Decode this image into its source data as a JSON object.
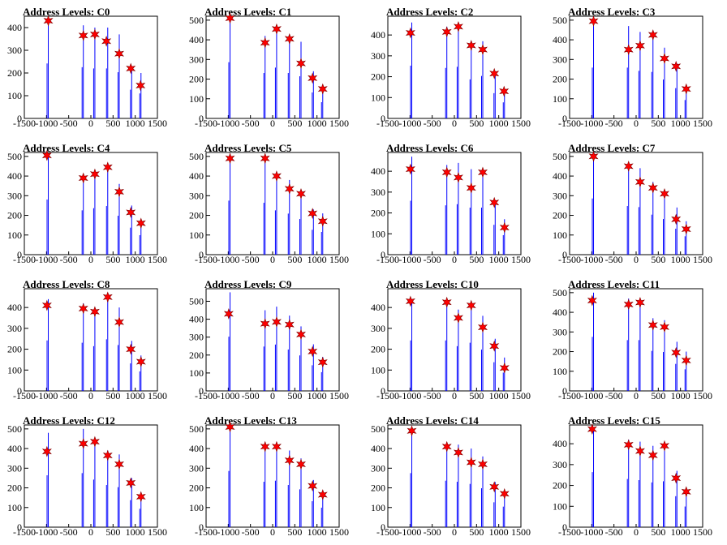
{
  "page": {
    "columns": 4,
    "rows": 4
  },
  "colors": {
    "line": "#0000ff",
    "marker": "#ff0000",
    "marker_edge": "#800000"
  },
  "chart_data": [
    {
      "type": "bar",
      "title": "Address Levels: C0",
      "xlim": [
        -1500,
        1500
      ],
      "ylim": [
        0,
        450
      ],
      "yticks": [
        0,
        100,
        200,
        300,
        400
      ],
      "xticks": [
        -1500,
        -1000,
        -500,
        0,
        500,
        1000,
        1500
      ],
      "bars_x": [
        -960,
        -170,
        90,
        380,
        640,
        920,
        1130
      ],
      "bars_y": [
        440,
        410,
        400,
        400,
        370,
        230,
        200
      ],
      "markers_x": [
        -960,
        -170,
        90,
        350,
        640,
        900,
        1120
      ],
      "markers_y": [
        430,
        365,
        370,
        340,
        285,
        220,
        145
      ]
    },
    {
      "type": "bar",
      "title": "Address Levels: C1",
      "xlim": [
        -1500,
        1500
      ],
      "ylim": [
        0,
        520
      ],
      "yticks": [
        0,
        100,
        200,
        300,
        400,
        500
      ],
      "xticks": [
        -1500,
        -1000,
        -500,
        0,
        500,
        1000,
        1500
      ],
      "bars_x": [
        -960,
        -170,
        90,
        380,
        640,
        920,
        1130
      ],
      "bars_y": [
        520,
        420,
        470,
        420,
        390,
        240,
        150
      ],
      "markers_x": [
        -960,
        -170,
        90,
        380,
        640,
        900,
        1130
      ],
      "markers_y": [
        510,
        385,
        455,
        405,
        280,
        205,
        150
      ]
    },
    {
      "type": "bar",
      "title": "Address Levels: C2",
      "xlim": [
        -1500,
        1500
      ],
      "ylim": [
        0,
        490
      ],
      "yticks": [
        0,
        100,
        200,
        300,
        400
      ],
      "xticks": [
        -1500,
        -1000,
        -500,
        0,
        500,
        1000,
        1500
      ],
      "bars_x": [
        -960,
        -170,
        90,
        380,
        640,
        920,
        1130
      ],
      "bars_y": [
        460,
        440,
        450,
        340,
        370,
        220,
        140
      ],
      "markers_x": [
        -990,
        -170,
        90,
        380,
        640,
        900,
        1120
      ],
      "markers_y": [
        410,
        415,
        440,
        350,
        330,
        215,
        130
      ]
    },
    {
      "type": "bar",
      "title": "Address Levels: C3",
      "xlim": [
        -1500,
        1500
      ],
      "ylim": [
        0,
        520
      ],
      "yticks": [
        0,
        100,
        200,
        300,
        400,
        500
      ],
      "xticks": [
        -1500,
        -1000,
        -500,
        0,
        500,
        1000,
        1500
      ],
      "bars_x": [
        -960,
        -170,
        90,
        380,
        640,
        920,
        1130
      ],
      "bars_y": [
        470,
        470,
        440,
        430,
        360,
        280,
        170
      ],
      "markers_x": [
        -960,
        -170,
        90,
        380,
        640,
        900,
        1130
      ],
      "markers_y": [
        495,
        350,
        370,
        425,
        305,
        265,
        150
      ]
    },
    {
      "type": "bar",
      "title": "Address Levels: C4",
      "xlim": [
        -1500,
        1500
      ],
      "ylim": [
        0,
        520
      ],
      "yticks": [
        0,
        100,
        200,
        300,
        400,
        500
      ],
      "xticks": [
        -1500,
        -1000,
        -500,
        0,
        500,
        1000,
        1500
      ],
      "bars_x": [
        -960,
        -170,
        90,
        380,
        640,
        920,
        1130
      ],
      "bars_y": [
        510,
        410,
        430,
        450,
        360,
        250,
        180
      ],
      "markers_x": [
        -990,
        -170,
        90,
        380,
        640,
        900,
        1130
      ],
      "markers_y": [
        505,
        390,
        410,
        445,
        320,
        215,
        160
      ]
    },
    {
      "type": "bar",
      "title": "Address Levels: C5",
      "xlim": [
        -1500,
        1500
      ],
      "ylim": [
        0,
        520
      ],
      "yticks": [
        0,
        100,
        200,
        300,
        400,
        500
      ],
      "xticks": [
        -1500,
        -1000,
        -500,
        0,
        500,
        1000,
        1500
      ],
      "bars_x": [
        -960,
        -170,
        90,
        380,
        640,
        920,
        1130
      ],
      "bars_y": [
        500,
        480,
        410,
        380,
        330,
        230,
        210
      ],
      "markers_x": [
        -960,
        -170,
        90,
        380,
        640,
        900,
        1130
      ],
      "markers_y": [
        490,
        490,
        400,
        335,
        310,
        210,
        170
      ]
    },
    {
      "type": "bar",
      "title": "Address Levels: C6",
      "xlim": [
        -1500,
        1500
      ],
      "ylim": [
        0,
        490
      ],
      "yticks": [
        0,
        100,
        200,
        300,
        400
      ],
      "xticks": [
        -1500,
        -1000,
        -500,
        0,
        500,
        1000,
        1500
      ],
      "bars_x": [
        -960,
        -170,
        90,
        380,
        640,
        920,
        1130
      ],
      "bars_y": [
        470,
        430,
        440,
        410,
        410,
        260,
        170
      ],
      "markers_x": [
        -990,
        -170,
        90,
        380,
        640,
        900,
        1130
      ],
      "markers_y": [
        410,
        395,
        370,
        320,
        395,
        250,
        130
      ]
    },
    {
      "type": "bar",
      "title": "Address Levels: C7",
      "xlim": [
        -1500,
        1500
      ],
      "ylim": [
        0,
        520
      ],
      "yticks": [
        0,
        100,
        200,
        300,
        400,
        500
      ],
      "xticks": [
        -1500,
        -1000,
        -500,
        0,
        500,
        1000,
        1500
      ],
      "bars_x": [
        -960,
        -170,
        90,
        380,
        640,
        920,
        1130
      ],
      "bars_y": [
        520,
        450,
        440,
        370,
        330,
        240,
        170
      ],
      "markers_x": [
        -960,
        -170,
        90,
        380,
        640,
        900,
        1130
      ],
      "markers_y": [
        500,
        450,
        370,
        340,
        310,
        180,
        130
      ]
    },
    {
      "type": "bar",
      "title": "Address Levels: C8",
      "xlim": [
        -1500,
        1500
      ],
      "ylim": [
        0,
        490
      ],
      "yticks": [
        0,
        100,
        200,
        300,
        400
      ],
      "xticks": [
        -1500,
        -1000,
        -500,
        0,
        500,
        1000,
        1500
      ],
      "bars_x": [
        -960,
        -170,
        90,
        380,
        640,
        920,
        1130
      ],
      "bars_y": [
        440,
        420,
        390,
        450,
        400,
        240,
        170
      ],
      "markers_x": [
        -990,
        -170,
        90,
        380,
        640,
        900,
        1130
      ],
      "markers_y": [
        410,
        395,
        380,
        450,
        330,
        200,
        140
      ]
    },
    {
      "type": "bar",
      "title": "Address Levels: C9",
      "xlim": [
        -1500,
        1500
      ],
      "ylim": [
        0,
        570
      ],
      "yticks": [
        0,
        100,
        200,
        300,
        400,
        500
      ],
      "xticks": [
        -1500,
        -1000,
        -500,
        0,
        500,
        1000,
        1500
      ],
      "bars_x": [
        -960,
        -170,
        90,
        380,
        640,
        920,
        1130
      ],
      "bars_y": [
        550,
        450,
        470,
        420,
        360,
        260,
        190
      ],
      "markers_x": [
        -990,
        -170,
        90,
        380,
        640,
        900,
        1130
      ],
      "markers_y": [
        430,
        375,
        385,
        370,
        315,
        220,
        160
      ]
    },
    {
      "type": "bar",
      "title": "Address Levels: C10",
      "xlim": [
        -1500,
        1500
      ],
      "ylim": [
        0,
        490
      ],
      "yticks": [
        0,
        100,
        200,
        300,
        400
      ],
      "xticks": [
        -1500,
        -1000,
        -500,
        0,
        500,
        1000,
        1500
      ],
      "bars_x": [
        -960,
        -170,
        90,
        380,
        640,
        920,
        1130
      ],
      "bars_y": [
        440,
        440,
        390,
        420,
        360,
        250,
        160
      ],
      "markers_x": [
        -990,
        -170,
        90,
        380,
        640,
        900,
        1130
      ],
      "markers_y": [
        430,
        425,
        350,
        410,
        305,
        215,
        110
      ]
    },
    {
      "type": "bar",
      "title": "Address Levels: C11",
      "xlim": [
        -1500,
        1500
      ],
      "ylim": [
        0,
        520
      ],
      "yticks": [
        0,
        100,
        200,
        300,
        400,
        500
      ],
      "xticks": [
        -1500,
        -1000,
        -500,
        0,
        500,
        1000,
        1500
      ],
      "bars_x": [
        -960,
        -170,
        90,
        380,
        640,
        920,
        1130
      ],
      "bars_y": [
        500,
        470,
        470,
        370,
        360,
        250,
        200
      ],
      "markers_x": [
        -990,
        -170,
        90,
        380,
        640,
        900,
        1130
      ],
      "markers_y": [
        460,
        440,
        450,
        335,
        325,
        195,
        155
      ]
    },
    {
      "type": "bar",
      "title": "Address Levels: C12",
      "xlim": [
        -1500,
        1500
      ],
      "ylim": [
        0,
        520
      ],
      "yticks": [
        0,
        100,
        200,
        300,
        400,
        500
      ],
      "xticks": [
        -1500,
        -1000,
        -500,
        0,
        500,
        1000,
        1500
      ],
      "bars_x": [
        -960,
        -170,
        90,
        380,
        640,
        920,
        1130
      ],
      "bars_y": [
        480,
        500,
        440,
        390,
        370,
        250,
        170
      ],
      "markers_x": [
        -990,
        -170,
        90,
        380,
        640,
        900,
        1130
      ],
      "markers_y": [
        385,
        425,
        435,
        365,
        320,
        225,
        155
      ]
    },
    {
      "type": "bar",
      "title": "Address Levels: C13",
      "xlim": [
        -1500,
        1500
      ],
      "ylim": [
        0,
        520
      ],
      "yticks": [
        0,
        100,
        200,
        300,
        400,
        500
      ],
      "xticks": [
        -1500,
        -1000,
        -500,
        0,
        500,
        1000,
        1500
      ],
      "bars_x": [
        -960,
        -170,
        90,
        380,
        640,
        920,
        1130
      ],
      "bars_y": [
        520,
        420,
        430,
        390,
        350,
        240,
        180
      ],
      "markers_x": [
        -960,
        -170,
        90,
        380,
        640,
        900,
        1130
      ],
      "markers_y": [
        510,
        410,
        410,
        340,
        320,
        210,
        165
      ]
    },
    {
      "type": "bar",
      "title": "Address Levels: C14",
      "xlim": [
        -1500,
        1500
      ],
      "ylim": [
        0,
        520
      ],
      "yticks": [
        0,
        100,
        200,
        300,
        400,
        500
      ],
      "xticks": [
        -1500,
        -1000,
        -500,
        0,
        500,
        1000,
        1500
      ],
      "bars_x": [
        -960,
        -170,
        90,
        380,
        640,
        920,
        1130
      ],
      "bars_y": [
        500,
        430,
        420,
        400,
        360,
        230,
        190
      ],
      "markers_x": [
        -960,
        -170,
        90,
        380,
        640,
        900,
        1130
      ],
      "markers_y": [
        490,
        410,
        380,
        330,
        320,
        205,
        170
      ]
    },
    {
      "type": "bar",
      "title": "Address Levels: C15",
      "xlim": [
        -1500,
        1500
      ],
      "ylim": [
        0,
        490
      ],
      "yticks": [
        0,
        100,
        200,
        300,
        400
      ],
      "xticks": [
        -1500,
        -1000,
        -500,
        0,
        500,
        1000,
        1500
      ],
      "bars_x": [
        -960,
        -170,
        90,
        380,
        640,
        920,
        1130
      ],
      "bars_y": [
        480,
        420,
        410,
        390,
        400,
        270,
        180
      ],
      "markers_x": [
        -990,
        -170,
        90,
        380,
        640,
        900,
        1130
      ],
      "markers_y": [
        470,
        395,
        365,
        345,
        390,
        235,
        170
      ]
    }
  ]
}
